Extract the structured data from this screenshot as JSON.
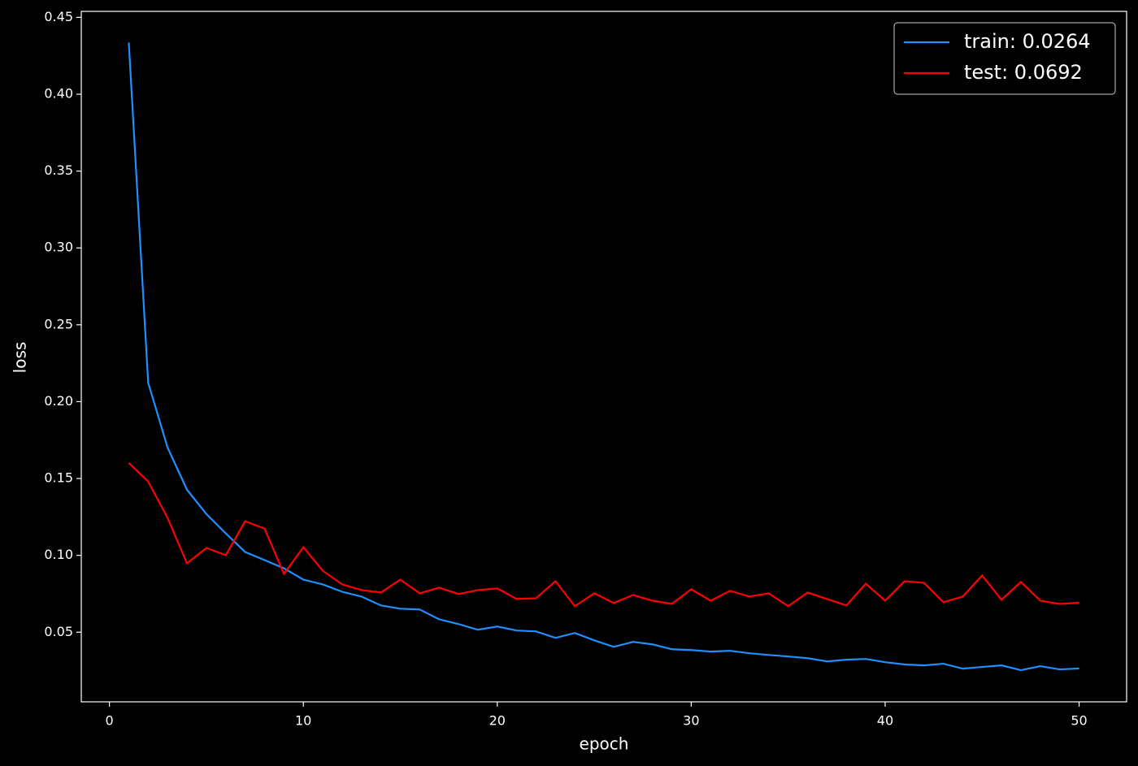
{
  "chart_data": {
    "type": "line",
    "xlabel": "epoch",
    "ylabel": "loss",
    "x": [
      1,
      2,
      3,
      4,
      5,
      6,
      7,
      8,
      9,
      10,
      11,
      12,
      13,
      14,
      15,
      16,
      17,
      18,
      19,
      20,
      21,
      22,
      23,
      24,
      25,
      26,
      27,
      28,
      29,
      30,
      31,
      32,
      33,
      34,
      35,
      36,
      37,
      38,
      39,
      40,
      41,
      42,
      43,
      44,
      45,
      46,
      47,
      48,
      49,
      50
    ],
    "series": [
      {
        "name": "train: 0.0264",
        "color": "#1e90ff",
        "values": [
          0.4336,
          0.2123,
          0.1701,
          0.1427,
          0.1269,
          0.1143,
          0.1022,
          0.0969,
          0.0916,
          0.0842,
          0.0811,
          0.0763,
          0.0732,
          0.0674,
          0.0653,
          0.0648,
          0.0584,
          0.0553,
          0.0516,
          0.0537,
          0.0511,
          0.0505,
          0.0463,
          0.0495,
          0.0447,
          0.0405,
          0.0437,
          0.0421,
          0.0389,
          0.0384,
          0.0374,
          0.0379,
          0.0363,
          0.0352,
          0.0342,
          0.0331,
          0.031,
          0.0321,
          0.0326,
          0.0305,
          0.029,
          0.0284,
          0.0295,
          0.0263,
          0.0274,
          0.0284,
          0.0253,
          0.0279,
          0.0258,
          0.0264
        ]
      },
      {
        "name": "test: 0.0692",
        "color": "#ff0000",
        "values": [
          0.1601,
          0.148,
          0.1243,
          0.0948,
          0.1048,
          0.1001,
          0.1222,
          0.1174,
          0.0879,
          0.1053,
          0.09,
          0.0811,
          0.0774,
          0.0758,
          0.0842,
          0.0753,
          0.079,
          0.0748,
          0.0774,
          0.0785,
          0.0716,
          0.0721,
          0.0832,
          0.0669,
          0.0753,
          0.069,
          0.0742,
          0.0705,
          0.0684,
          0.0779,
          0.0705,
          0.0769,
          0.0732,
          0.0753,
          0.0669,
          0.0758,
          0.0716,
          0.0674,
          0.0816,
          0.0705,
          0.0832,
          0.0821,
          0.0695,
          0.0732,
          0.0869,
          0.0711,
          0.0827,
          0.0705,
          0.0684,
          0.0692
        ]
      }
    ],
    "xlim": [
      -1.45,
      52.45
    ],
    "xticks": [
      0,
      10,
      20,
      30,
      40,
      50
    ],
    "ylim": [
      0.0047,
      0.4539
    ],
    "yticks": [
      0.05,
      {
        "value": 0.1,
        "label": "0.10"
      },
      0.15,
      {
        "value": 0.2,
        "label": "0.20"
      },
      0.25,
      {
        "value": 0.3,
        "label": "0.30"
      },
      0.35,
      {
        "value": 0.4,
        "label": "0.40"
      },
      0.45
    ],
    "grid": false,
    "legend": "upper right"
  }
}
